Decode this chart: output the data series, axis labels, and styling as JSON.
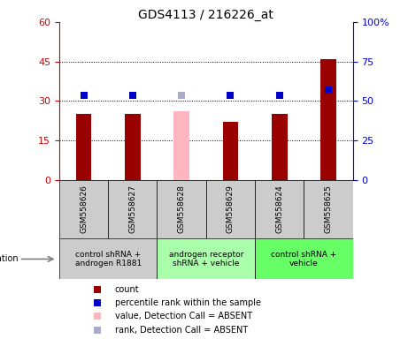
{
  "title": "GDS4113 / 216226_at",
  "samples": [
    "GSM558626",
    "GSM558627",
    "GSM558628",
    "GSM558629",
    "GSM558624",
    "GSM558625"
  ],
  "counts": [
    25,
    25,
    null,
    22,
    25,
    46
  ],
  "counts_absent": [
    null,
    null,
    26,
    null,
    null,
    null
  ],
  "percentile_ranks": [
    32,
    32,
    null,
    32,
    32,
    34
  ],
  "percentile_ranks_absent": [
    null,
    null,
    32,
    null,
    null,
    null
  ],
  "ylim_left": [
    0,
    60
  ],
  "ylim_right": [
    0,
    100
  ],
  "yticks_left": [
    0,
    15,
    30,
    45,
    60
  ],
  "yticks_right": [
    0,
    25,
    50,
    75,
    100
  ],
  "bar_color_present": "#990000",
  "bar_color_absent": "#FFB6C1",
  "marker_color_present": "#0000CC",
  "marker_color_absent": "#AAAACC",
  "groups": [
    {
      "label": "control shRNA +\nandrogen R1881",
      "samples": [
        0,
        1
      ],
      "color": "#CCCCCC"
    },
    {
      "label": "androgen receptor\nshRNA + vehicle",
      "samples": [
        2,
        3
      ],
      "color": "#AAFFAA"
    },
    {
      "label": "control shRNA +\nvehicle",
      "samples": [
        4,
        5
      ],
      "color": "#66FF66"
    }
  ],
  "legend_items": [
    {
      "color": "#990000",
      "label": "count"
    },
    {
      "color": "#0000CC",
      "label": "percentile rank within the sample"
    },
    {
      "color": "#FFB6C1",
      "label": "value, Detection Call = ABSENT"
    },
    {
      "color": "#AAAACC",
      "label": "rank, Detection Call = ABSENT"
    }
  ],
  "left_tick_color": "#CC0000",
  "right_tick_color": "#0000CC",
  "sample_bg_color": "#CCCCCC",
  "background_color": "#FFFFFF",
  "plot_bg_color": "#FFFFFF",
  "bar_width": 0.32,
  "marker_size": 35
}
